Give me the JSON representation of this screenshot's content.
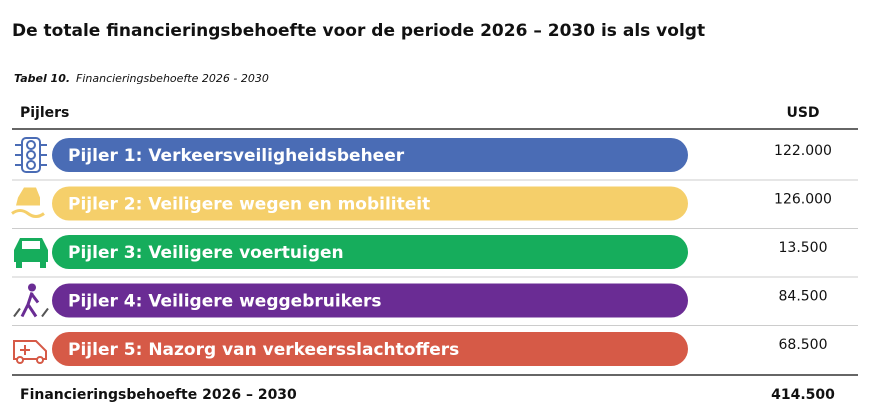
{
  "title": "De totale financieringsbehoefte voor de periode 2026 – 2030 is als volgt",
  "caption": {
    "label": "Tabel 10.",
    "text": "Financieringsbehoefte 2026 - 2030"
  },
  "table": {
    "header": [
      "Pijlers",
      "USD"
    ],
    "rows": [
      {
        "label": "Pijler 1: Verkeersveiligheidsbeheer",
        "value": "122.000",
        "color": "#4a6cb5"
      },
      {
        "label": "Pijler 2: Veiligere wegen en mobiliteit",
        "value": "126.000",
        "color": "#f5cf6a"
      },
      {
        "label": "Pijler 3: Veiligere voertuigen",
        "value": "13.500",
        "color": "#16ad5c"
      },
      {
        "label": "Pijler 4: Veiligere weggebruikers",
        "value": "84.500",
        "color": "#6a2c94"
      },
      {
        "label": "Pijler 5: Nazorg van verkeersslachtoffers",
        "value": "68.500",
        "color": "#d65a47"
      }
    ],
    "total": [
      "Financieringsbehoefte 2026 – 2030",
      "414.500"
    ]
  }
}
